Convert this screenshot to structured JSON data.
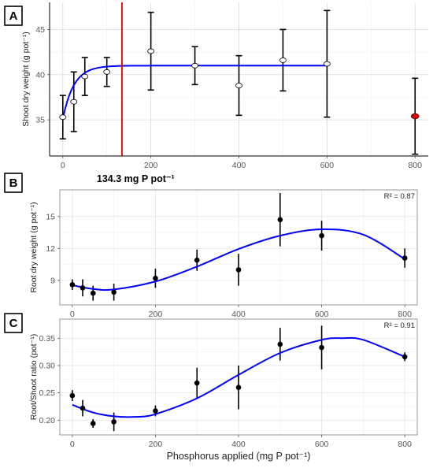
{
  "chart_data": [
    {
      "panel": "A",
      "type": "scatter",
      "ylabel": "Shoot dry weight (g pot⁻¹)",
      "x_ticks": [
        0,
        200,
        400,
        600,
        800
      ],
      "y_ticks": [
        35,
        40,
        45
      ],
      "xlim": [
        -30,
        830
      ],
      "ylim": [
        31,
        48
      ],
      "grid": true,
      "points": [
        {
          "x": 0,
          "y": 35.3,
          "err": 2.4
        },
        {
          "x": 25,
          "y": 37.0,
          "err": 3.3
        },
        {
          "x": 50,
          "y": 39.8,
          "err": 2.1
        },
        {
          "x": 100,
          "y": 40.3,
          "err": 1.6
        },
        {
          "x": 200,
          "y": 42.6,
          "err": 4.3
        },
        {
          "x": 300,
          "y": 41.0,
          "err": 2.1
        },
        {
          "x": 400,
          "y": 38.8,
          "err": 3.3
        },
        {
          "x": 500,
          "y": 41.6,
          "err": 3.4
        },
        {
          "x": 600,
          "y": 41.2,
          "err": 5.9
        }
      ],
      "excluded_point": {
        "x": 800,
        "y": 35.4,
        "err": 4.2,
        "color": "#e00000"
      },
      "fit": {
        "model": "exponential plateau",
        "plateau": 41.0,
        "y0": 35.1,
        "rate": 0.04,
        "x_range": [
          0,
          600
        ],
        "color": "#0000ff"
      },
      "threshold": {
        "x": 134.3,
        "label": "134.3 mg P pot⁻¹",
        "color": "#e00000"
      }
    },
    {
      "panel": "B",
      "type": "scatter",
      "ylabel": "Root dry weight (g pot⁻¹)",
      "x_ticks": [
        0,
        200,
        400,
        600,
        800
      ],
      "y_ticks": [
        9,
        12,
        15
      ],
      "xlim": [
        -30,
        830
      ],
      "ylim": [
        6.7,
        17.5
      ],
      "grid": true,
      "annotation": "R² = 0.87",
      "points": [
        {
          "x": 0,
          "y": 8.6,
          "err": 0.5
        },
        {
          "x": 25,
          "y": 8.3,
          "err": 0.8
        },
        {
          "x": 50,
          "y": 7.8,
          "err": 0.7
        },
        {
          "x": 100,
          "y": 7.9,
          "err": 0.8
        },
        {
          "x": 200,
          "y": 9.2,
          "err": 0.9
        },
        {
          "x": 300,
          "y": 10.9,
          "err": 1.0
        },
        {
          "x": 400,
          "y": 10.0,
          "err": 1.5
        },
        {
          "x": 500,
          "y": 14.7,
          "err": 2.5
        },
        {
          "x": 600,
          "y": 13.2,
          "err": 1.4
        },
        {
          "x": 800,
          "y": 11.1,
          "err": 0.9
        }
      ],
      "fit": {
        "model": "cubic polynomial",
        "color": "#0000ff",
        "x_range": [
          0,
          800
        ],
        "curve": [
          [
            0,
            8.55
          ],
          [
            50,
            8.2
          ],
          [
            100,
            8.15
          ],
          [
            200,
            8.9
          ],
          [
            300,
            10.3
          ],
          [
            400,
            11.95
          ],
          [
            500,
            13.2
          ],
          [
            600,
            13.8
          ],
          [
            700,
            13.3
          ],
          [
            800,
            11.0
          ]
        ]
      }
    },
    {
      "panel": "C",
      "type": "scatter",
      "ylabel": "Root/Shoot ratio (pot⁻¹)",
      "xlabel": "Phosphorus applied  (mg P pot⁻¹)",
      "x_ticks": [
        0,
        200,
        400,
        600,
        800
      ],
      "y_ticks": [
        0.2,
        0.25,
        0.3,
        0.35
      ],
      "y_tick_labels": [
        "0.20",
        "0.25",
        "0.30",
        "0.35"
      ],
      "xlim": [
        -30,
        830
      ],
      "ylim": [
        0.173,
        0.385
      ],
      "grid": true,
      "annotation": "R² = 0.91",
      "points": [
        {
          "x": 0,
          "y": 0.245,
          "err": 0.01
        },
        {
          "x": 25,
          "y": 0.222,
          "err": 0.015
        },
        {
          "x": 50,
          "y": 0.194,
          "err": 0.008
        },
        {
          "x": 100,
          "y": 0.197,
          "err": 0.017
        },
        {
          "x": 200,
          "y": 0.217,
          "err": 0.01
        },
        {
          "x": 300,
          "y": 0.268,
          "err": 0.028
        },
        {
          "x": 400,
          "y": 0.26,
          "err": 0.04
        },
        {
          "x": 500,
          "y": 0.339,
          "err": 0.03
        },
        {
          "x": 600,
          "y": 0.333,
          "err": 0.04
        },
        {
          "x": 800,
          "y": 0.316,
          "err": 0.008
        }
      ],
      "fit": {
        "model": "cubic polynomial",
        "color": "#0000ff",
        "x_range": [
          0,
          800
        ],
        "curve": [
          [
            0,
            0.228
          ],
          [
            50,
            0.214
          ],
          [
            100,
            0.207
          ],
          [
            150,
            0.206
          ],
          [
            200,
            0.211
          ],
          [
            300,
            0.24
          ],
          [
            400,
            0.283
          ],
          [
            500,
            0.323
          ],
          [
            600,
            0.347
          ],
          [
            650,
            0.35
          ],
          [
            700,
            0.347
          ],
          [
            800,
            0.316
          ]
        ]
      }
    }
  ]
}
